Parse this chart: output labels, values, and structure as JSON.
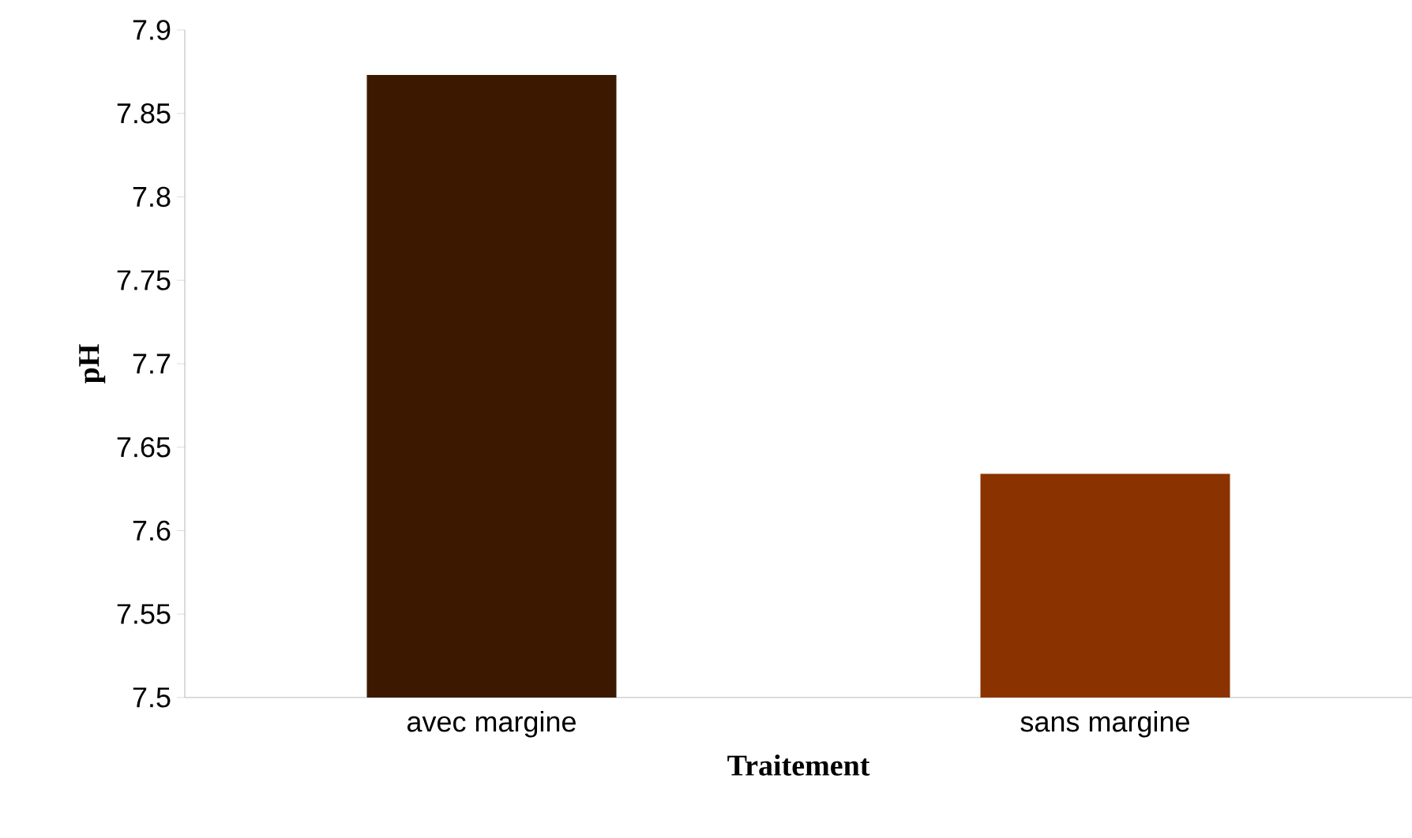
{
  "chart_data": {
    "type": "bar",
    "xlabel": "Traitement",
    "ylabel": "pH",
    "categories": [
      "avec margine",
      "sans margine"
    ],
    "values": [
      7.873,
      7.634
    ],
    "colors": [
      "#3d1800",
      "#8b3300"
    ],
    "ylim": [
      7.5,
      7.9
    ],
    "yticks": [
      7.5,
      7.55,
      7.6,
      7.65,
      7.7,
      7.75,
      7.8,
      7.85,
      7.9
    ],
    "grid": false
  }
}
